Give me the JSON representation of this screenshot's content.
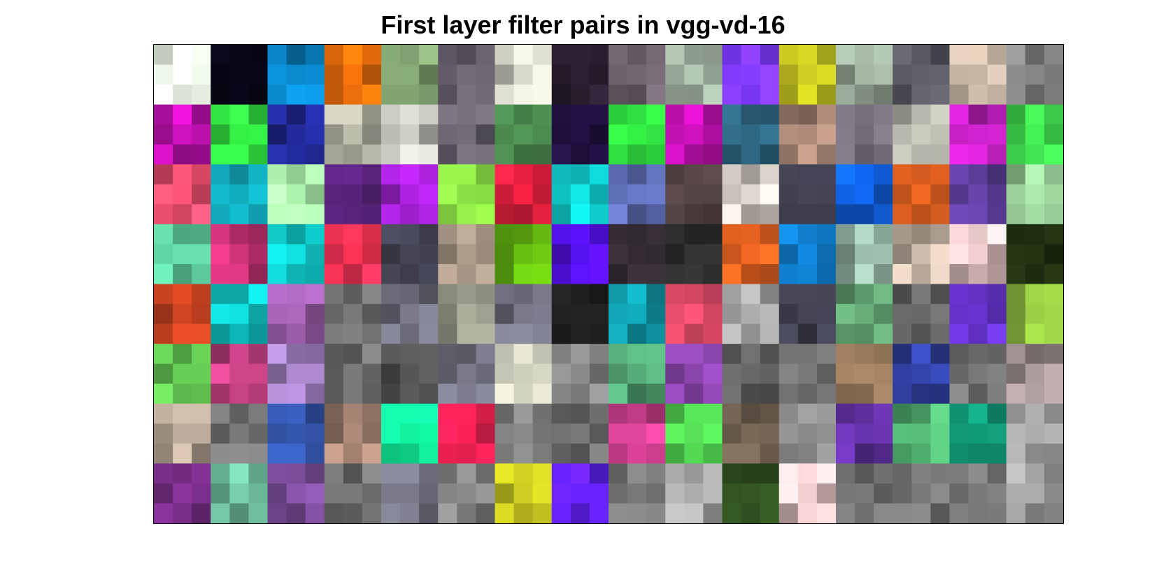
{
  "figure": {
    "title": "First layer filter pairs in vgg-vd-16"
  },
  "grid": {
    "filter_rows": 8,
    "filter_cols": 16,
    "filter_size": 3,
    "filters": [
      [
        "#eef8ea",
        "#080717",
        "#0a80c0",
        "#e86c0c",
        "#7fa070",
        "#6a6470",
        "#c8c8bc",
        "#2a1e30",
        "#6a5e68",
        "#a8bba8",
        "#7a38f8",
        "#c0c020",
        "#98aa98",
        "#5a5a64",
        "#b8a898",
        "#7c7c7c"
      ],
      [
        "#c010b0",
        "#30e040",
        "#202890",
        "#b0b0a0",
        "#c0c0b8",
        "#6a6470",
        "#4c8c50",
        "#201040",
        "#30e040",
        "#c010b0",
        "#2a6078",
        "#a08070",
        "#6a6470",
        "#bcbcb0",
        "#c020c0",
        "#40e050"
      ],
      [
        "#f05070",
        "#10a0b0",
        "#a0e0a0",
        "#502070",
        "#a020d0",
        "#80d040",
        "#e82040",
        "#10d8d8",
        "#6070b8",
        "#504040",
        "#d0c8c0",
        "#404050",
        "#1060e0",
        "#e06020",
        "#6040a0",
        "#a0d8a0"
      ],
      [
        "#60d0a0",
        "#c03070",
        "#10d0d0",
        "#e83050",
        "#404050",
        "#a09080",
        "#60b010",
        "#5010e0",
        "#302830",
        "#303030",
        "#e06020",
        "#1080d0",
        "#90b0a0",
        "#c0b0a0",
        "#e0c0c0",
        "#203010"
      ],
      [
        "#c04020",
        "#10d0d0",
        "#a060b0",
        "#707070",
        "#707080",
        "#a0a090",
        "#707080",
        "#202020",
        "#10a0b0",
        "#f05070",
        "#a0a0a0",
        "#404050",
        "#60a070",
        "#606060",
        "#6030c0",
        "#90c040"
      ],
      [
        "#60c050",
        "#c04080",
        "#a080c0",
        "#707070",
        "#505050",
        "#707080",
        "#c0c0b0",
        "#808080",
        "#50a070",
        "#8040a0",
        "#606060",
        "#707070",
        "#a08060",
        "#3040a0",
        "#707070",
        "#a09090"
      ],
      [
        "#b0a090",
        "#707070",
        "#3050a0",
        "#a08070",
        "#10e090",
        "#e82050",
        "#808080",
        "#707070",
        "#d04090",
        "#50d050",
        "#706050",
        "#808080",
        "#6030a0",
        "#50b070",
        "#109070",
        "#a0a0a0"
      ],
      [
        "#803090",
        "#70c0a0",
        "#8050a0",
        "#707070",
        "#707080",
        "#808080",
        "#c0c020",
        "#6020f0",
        "#707070",
        "#a0a0a0",
        "#305020",
        "#e0c0c0",
        "#707070",
        "#707070",
        "#707070",
        "#a0a0a0"
      ]
    ]
  }
}
